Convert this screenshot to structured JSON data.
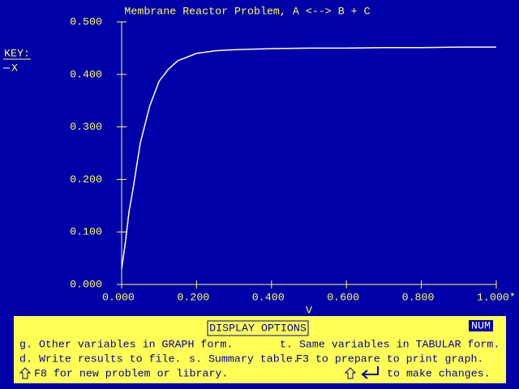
{
  "chart_data": {
    "type": "line",
    "title": "Membrane Reactor Problem, A <--> B + C",
    "x_label": "V",
    "legend_title": "KEY:",
    "x": [
      0,
      0.01,
      0.02,
      0.03,
      0.05,
      0.075,
      0.1,
      0.125,
      0.15,
      0.2,
      0.25,
      0.3,
      0.4,
      0.5,
      0.6,
      0.7,
      0.8,
      0.9,
      1.0
    ],
    "series": [
      {
        "name": "X",
        "color": "#ffffff",
        "values": [
          0.03,
          0.08,
          0.14,
          0.18,
          0.27,
          0.34,
          0.387,
          0.41,
          0.426,
          0.44,
          0.445,
          0.447,
          0.449,
          0.45,
          0.45,
          0.451,
          0.451,
          0.452,
          0.452
        ]
      }
    ],
    "xlim": [
      0,
      1.0
    ],
    "ylim": [
      0,
      0.5
    ],
    "xticks": [
      {
        "value": 0,
        "label": "0.000"
      },
      {
        "value": 0.2,
        "label": "0.200"
      },
      {
        "value": 0.4,
        "label": "0.400"
      },
      {
        "value": 0.6,
        "label": "0.600"
      },
      {
        "value": 0.8,
        "label": "0.800"
      },
      {
        "value": 1.0,
        "label": "1.000*"
      }
    ],
    "yticks": [
      {
        "value": 0,
        "label": "0.000"
      },
      {
        "value": 0.1,
        "label": "0.100"
      },
      {
        "value": 0.2,
        "label": "0.200"
      },
      {
        "value": 0.3,
        "label": "0.300"
      },
      {
        "value": 0.4,
        "label": "0.400"
      },
      {
        "value": 0.5,
        "label": "0.500"
      }
    ]
  },
  "panel": {
    "title": "DISPLAY OPTIONS",
    "status": "NUM",
    "options": [
      "g. Other variables in GRAPH form.",
      "t. Same variables in TABULAR form.",
      "d. Write results to file.",
      "s. Summary table.",
      "F3 to prepare to print graph.",
      "F8 for new problem or library.",
      "to make changes."
    ]
  }
}
